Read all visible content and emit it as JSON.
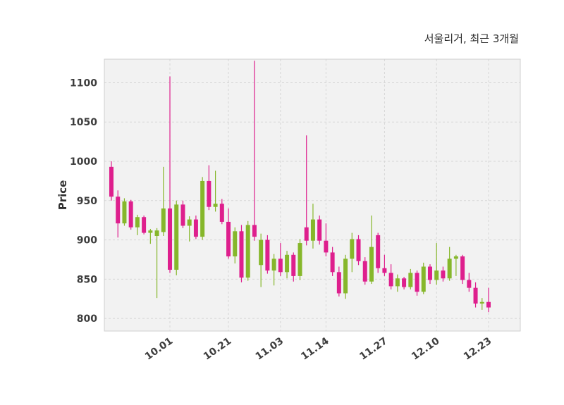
{
  "chart_data": {
    "type": "candlestick",
    "title": "서울리거, 최근 3개월",
    "ylabel": "Price",
    "y_ticks": [
      800,
      850,
      900,
      950,
      1000,
      1050,
      1100
    ],
    "y_domain": [
      784,
      1130
    ],
    "x_ticks": [
      {
        "index": 9,
        "label": "10.01"
      },
      {
        "index": 18,
        "label": "10.21"
      },
      {
        "index": 26,
        "label": "11.03"
      },
      {
        "index": 33,
        "label": "11.14"
      },
      {
        "index": 42,
        "label": "11.27"
      },
      {
        "index": 50,
        "label": "12.10"
      },
      {
        "index": 58,
        "label": "12.23"
      }
    ],
    "up_color": "#86B72B",
    "down_color": "#DE1F8D",
    "grid": true,
    "plot_bg": "#F2F2F2",
    "grid_color": "#D6D6D6",
    "border_color": "#CFCFCF",
    "legend_position": "none",
    "candles": [
      [
        993,
        1000,
        950,
        955
      ],
      [
        955,
        963,
        903,
        921
      ],
      [
        921,
        953,
        918,
        949
      ],
      [
        949,
        951,
        913,
        916
      ],
      [
        916,
        932,
        906,
        929
      ],
      [
        929,
        931,
        907,
        909
      ],
      [
        909,
        914,
        895,
        912
      ],
      [
        905,
        915,
        826,
        912
      ],
      [
        910,
        993,
        905,
        940
      ],
      [
        940,
        1108,
        858,
        862
      ],
      [
        862,
        950,
        855,
        945
      ],
      [
        945,
        950,
        915,
        918
      ],
      [
        918,
        930,
        898,
        926
      ],
      [
        926,
        931,
        901,
        904
      ],
      [
        904,
        980,
        900,
        975
      ],
      [
        975,
        995,
        938,
        942
      ],
      [
        942,
        988,
        936,
        946
      ],
      [
        946,
        952,
        920,
        923
      ],
      [
        923,
        940,
        876,
        879
      ],
      [
        879,
        916,
        870,
        911
      ],
      [
        911,
        919,
        846,
        852
      ],
      [
        852,
        924,
        848,
        919
      ],
      [
        919,
        1128,
        899,
        904
      ],
      [
        868,
        908,
        840,
        900
      ],
      [
        900,
        906,
        857,
        861
      ],
      [
        861,
        882,
        842,
        876
      ],
      [
        876,
        896,
        854,
        859
      ],
      [
        859,
        886,
        851,
        881
      ],
      [
        881,
        884,
        847,
        854
      ],
      [
        854,
        901,
        849,
        896
      ],
      [
        916,
        1033,
        893,
        899
      ],
      [
        899,
        946,
        889,
        926
      ],
      [
        926,
        931,
        894,
        899
      ],
      [
        899,
        921,
        879,
        884
      ],
      [
        884,
        891,
        854,
        859
      ],
      [
        859,
        866,
        828,
        832
      ],
      [
        832,
        881,
        825,
        876
      ],
      [
        876,
        909,
        859,
        901
      ],
      [
        901,
        906,
        868,
        873
      ],
      [
        873,
        878,
        843,
        847
      ],
      [
        847,
        931,
        844,
        891
      ],
      [
        906,
        909,
        858,
        864
      ],
      [
        864,
        881,
        854,
        858
      ],
      [
        858,
        869,
        837,
        841
      ],
      [
        841,
        856,
        834,
        851
      ],
      [
        851,
        853,
        837,
        840
      ],
      [
        840,
        863,
        837,
        858
      ],
      [
        858,
        861,
        829,
        834
      ],
      [
        834,
        871,
        831,
        866
      ],
      [
        866,
        869,
        844,
        849
      ],
      [
        849,
        896,
        843,
        861
      ],
      [
        861,
        866,
        847,
        851
      ],
      [
        851,
        891,
        848,
        876
      ],
      [
        876,
        881,
        854,
        879
      ],
      [
        879,
        881,
        844,
        849
      ],
      [
        849,
        858,
        834,
        839
      ],
      [
        839,
        846,
        814,
        819
      ],
      [
        819,
        826,
        811,
        821
      ],
      [
        821,
        839,
        808,
        814
      ]
    ]
  }
}
